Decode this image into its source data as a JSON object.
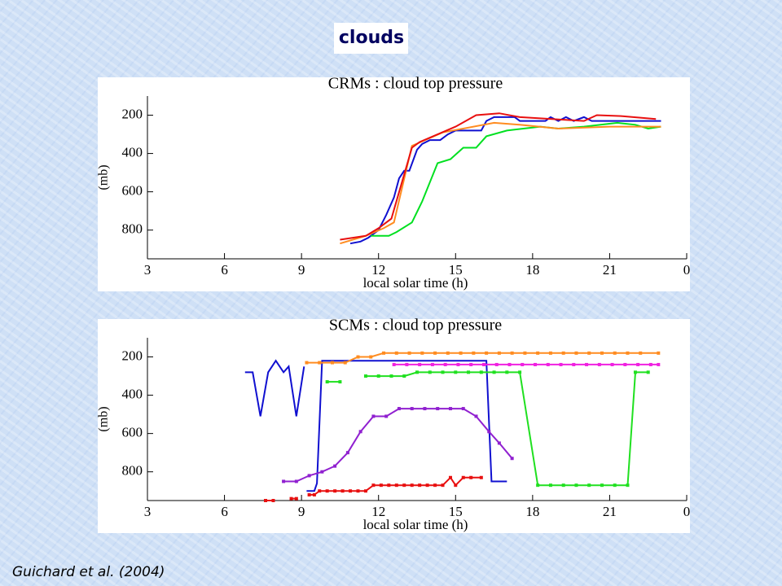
{
  "title": "clouds",
  "citation": "Guichard  et al. (2004)",
  "chart_data": [
    {
      "type": "line",
      "title": "CRMs : cloud top pressure",
      "xlabel": "local solar time (h)",
      "ylabel": "(mb)",
      "xlim": [
        3,
        24
      ],
      "xticks": [
        3,
        6,
        9,
        12,
        15,
        18,
        21,
        {
          "value": 24,
          "label": "0"
        }
      ],
      "ylim": [
        950,
        100
      ],
      "yticks": [
        200,
        400,
        600,
        800
      ],
      "markers": false,
      "series": [
        {
          "color": "#1010d0",
          "x": [
            10.9,
            11.3,
            11.6,
            12,
            12.3,
            12.6,
            12.8,
            13,
            13.2,
            13.5,
            13.7,
            14,
            14.4,
            14.7,
            15,
            16,
            16.2,
            16.5,
            17.3,
            17.5,
            18.5,
            18.7,
            19,
            19.3,
            19.6,
            20,
            20.3,
            22,
            23
          ],
          "values": [
            870,
            860,
            840,
            800,
            720,
            630,
            530,
            490,
            490,
            380,
            350,
            330,
            330,
            300,
            280,
            280,
            230,
            210,
            210,
            230,
            230,
            210,
            230,
            210,
            230,
            210,
            230,
            230,
            230
          ]
        },
        {
          "color": "#00e020",
          "x": [
            11.7,
            12.4,
            12.7,
            13.3,
            13.7,
            14.3,
            14.8,
            15.3,
            15.8,
            16.2,
            17,
            18.3,
            19,
            20,
            21.3,
            22,
            22.5,
            23
          ],
          "values": [
            830,
            830,
            810,
            760,
            650,
            450,
            430,
            370,
            370,
            310,
            280,
            260,
            270,
            260,
            240,
            250,
            270,
            260
          ]
        },
        {
          "color": "#ff8c20",
          "x": [
            10.5,
            11.5,
            12.2,
            12.6,
            13.3,
            14.5,
            16.5,
            17.5,
            19,
            21,
            23
          ],
          "values": [
            870,
            830,
            790,
            760,
            360,
            290,
            240,
            250,
            270,
            260,
            260
          ]
        },
        {
          "color": "#e81010",
          "x": [
            10.5,
            11.5,
            12,
            12.5,
            13.3,
            13.6,
            15,
            15.8,
            16.7,
            17.5,
            20,
            20.5,
            21.5,
            22.8
          ],
          "values": [
            850,
            830,
            790,
            740,
            370,
            340,
            260,
            200,
            190,
            210,
            230,
            200,
            205,
            220
          ]
        }
      ]
    },
    {
      "type": "line",
      "title": "SCMs : cloud top pressure",
      "xlabel": "local solar time (h)",
      "ylabel": "(mb)",
      "xlim": [
        3,
        24
      ],
      "xticks": [
        3,
        6,
        9,
        12,
        15,
        18,
        21,
        {
          "value": 24,
          "label": "0"
        }
      ],
      "ylim": [
        950,
        100
      ],
      "yticks": [
        200,
        400,
        600,
        800
      ],
      "markers": true,
      "series": [
        {
          "color": "#1010d0",
          "markers": false,
          "x": [
            6.8,
            7.1,
            7.4,
            7.7,
            8,
            8.3,
            8.5,
            8.8,
            9.1,
            9.15,
            9.2,
            9.5,
            9.6,
            9.8,
            16.2,
            16.4,
            17
          ],
          "values": [
            280,
            280,
            510,
            280,
            220,
            280,
            250,
            510,
            250,
            null,
            900,
            900,
            860,
            220,
            220,
            850,
            850
          ]
        },
        {
          "color": "#ff8c20",
          "x": [
            9.2,
            9.7,
            10.2,
            10.7,
            11.2,
            11.7,
            12.2,
            12.7,
            13.2,
            13.7,
            14.2,
            14.7,
            15.2,
            15.7,
            16.2,
            16.7,
            17.2,
            17.7,
            18.2,
            18.7,
            19.2,
            19.7,
            20.2,
            20.7,
            21.2,
            21.7,
            22.2,
            22.9
          ],
          "values": [
            230,
            230,
            230,
            230,
            200,
            200,
            180,
            180,
            180,
            180,
            180,
            180,
            180,
            180,
            180,
            180,
            180,
            180,
            180,
            180,
            180,
            180,
            180,
            180,
            180,
            180,
            180,
            180
          ]
        },
        {
          "color": "#f020e0",
          "x": [
            12.6,
            13.1,
            13.6,
            14.1,
            14.6,
            15.1,
            15.6,
            16.1,
            16.6,
            17.1,
            17.6,
            18.1,
            18.6,
            19.1,
            19.6,
            20.1,
            20.6,
            21.1,
            21.6,
            22.1,
            22.6,
            22.9
          ],
          "values": [
            240,
            240,
            240,
            240,
            240,
            240,
            240,
            240,
            240,
            240,
            240,
            240,
            240,
            240,
            240,
            240,
            240,
            240,
            240,
            240,
            240,
            240
          ]
        },
        {
          "color": "#20e020",
          "x": [
            10,
            10.5,
            11,
            11.5,
            12,
            12.5,
            13,
            13.5,
            14,
            14.5,
            15,
            15.5,
            16,
            16.5,
            17,
            17.5,
            18.2,
            18.7,
            19.2,
            19.7,
            20.2,
            20.7,
            21.2,
            21.7,
            22,
            22.5
          ],
          "values": [
            330,
            330,
            null,
            300,
            300,
            300,
            300,
            280,
            280,
            280,
            280,
            280,
            280,
            280,
            280,
            280,
            870,
            870,
            870,
            870,
            870,
            870,
            870,
            870,
            280,
            280
          ]
        },
        {
          "color": "#9020d0",
          "x": [
            8.3,
            8.8,
            9.3,
            9.8,
            10.3,
            10.8,
            11.3,
            11.8,
            12.3,
            12.8,
            13.3,
            13.8,
            14.3,
            14.8,
            15.3,
            15.8,
            16.3,
            16.7,
            17.2
          ],
          "values": [
            850,
            850,
            820,
            800,
            770,
            700,
            590,
            510,
            510,
            470,
            470,
            470,
            470,
            470,
            470,
            510,
            590,
            650,
            730
          ]
        },
        {
          "color": "#e81010",
          "x": [
            7.6,
            7.9,
            8.2,
            8.6,
            8.8,
            9.1,
            9.3,
            9.5,
            9.7,
            10,
            10.3,
            10.6,
            10.9,
            11.2,
            11.5,
            11.8,
            12.1,
            12.4,
            12.7,
            13,
            13.3,
            13.6,
            13.9,
            14.2,
            14.5,
            14.8,
            15,
            15.3,
            15.6,
            16
          ],
          "values": [
            950,
            950,
            null,
            940,
            940,
            null,
            920,
            920,
            900,
            900,
            900,
            900,
            900,
            900,
            900,
            870,
            870,
            870,
            870,
            870,
            870,
            870,
            870,
            870,
            870,
            830,
            870,
            830,
            830,
            830
          ]
        }
      ]
    }
  ]
}
